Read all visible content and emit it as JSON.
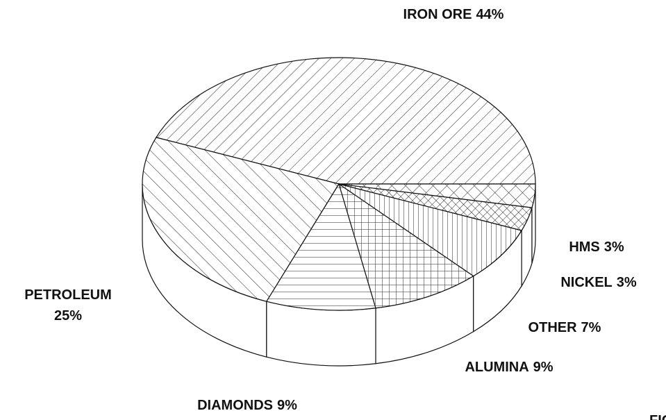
{
  "chart_data": {
    "type": "pie3d",
    "categories": [
      "IRON ORE",
      "PETROLEUM",
      "DIAMONDS",
      "ALUMINA",
      "OTHER",
      "NICKEL",
      "HMS"
    ],
    "values": [
      44,
      25,
      9,
      9,
      7,
      3,
      3
    ],
    "value_labels": [
      "44%",
      "25%",
      "9%",
      "9%",
      "7%",
      "3%",
      "3%"
    ],
    "patterns": [
      "diagonal-up",
      "diagonal-down",
      "horizontal",
      "grid",
      "vertical",
      "cross-fine",
      "cross-wide"
    ],
    "annotation": "FIG"
  }
}
